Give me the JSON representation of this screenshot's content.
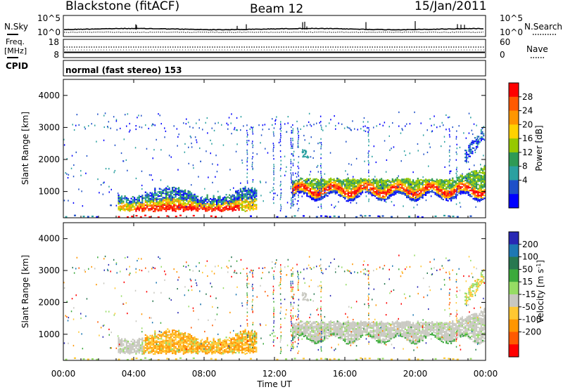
{
  "header": {
    "title": "Blackstone (fitACF)",
    "beam": "Beam 12",
    "date": "15/Jan/2011"
  },
  "noise_panel": {
    "left_label": "N.Sky",
    "right_label": "N.Search",
    "left_ticks": [
      "10^5",
      "10^0"
    ],
    "right_ticks": [
      "10^5",
      "10^0"
    ]
  },
  "freq_panel": {
    "left_label_top": "Freq.",
    "left_label_bottom": "[MHz]",
    "right_label": "Nave",
    "left_ticks": [
      "18",
      "8"
    ],
    "right_ticks": [
      "60",
      "0"
    ]
  },
  "cpid": {
    "label": "CPID",
    "value": "normal (fast stereo) 153"
  },
  "time_axis": {
    "label": "Time UT",
    "ticks": [
      "00:00",
      "04:00",
      "08:00",
      "12:00",
      "16:00",
      "20:00",
      "00:00"
    ]
  },
  "chart_data": [
    {
      "type": "heatmap",
      "name": "power",
      "xlabel": "Time UT",
      "ylabel": "Slant Range [km]",
      "xlim": [
        0,
        24
      ],
      "ylim": [
        180,
        4500
      ],
      "y_ticks": [
        "1000",
        "2000",
        "3000",
        "4000"
      ],
      "colorbar": {
        "label": "Power [dB]",
        "ticks": [
          "28",
          "24",
          "20",
          "16",
          "12",
          "8",
          "4"
        ],
        "colors": [
          "#ff0000",
          "#ff5a00",
          "#ff9600",
          "#ffd200",
          "#96c800",
          "#2e9a55",
          "#2aa0a0",
          "#1e50c8",
          "#0000ff"
        ]
      }
    },
    {
      "type": "heatmap",
      "name": "velocity",
      "xlabel": "Time UT",
      "ylabel": "Slant Range [km]",
      "xlim": [
        0,
        24
      ],
      "ylim": [
        180,
        4500
      ],
      "y_ticks": [
        "1000",
        "2000",
        "3000",
        "4000"
      ],
      "colorbar": {
        "label": "Velocity [m s",
        "label_sup": "-1",
        "label_end": "]",
        "ticks": [
          "200",
          "100",
          "50",
          "15",
          "-15",
          "-50",
          "-100",
          "-200"
        ],
        "colors": [
          "#2828b4",
          "#1e78b4",
          "#287850",
          "#3caa3c",
          "#96dc64",
          "#c8c8c0",
          "#ffc832",
          "#ff9600",
          "#ff5a00",
          "#ff0000"
        ]
      }
    }
  ]
}
